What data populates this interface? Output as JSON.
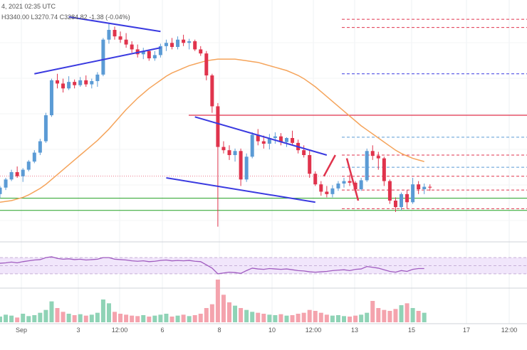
{
  "header": {
    "ohlc_text": "4, 2021 02:35 UTC",
    "ohlc_values": "H3340.00  L3270.74  C3284.82  -1.38 (-0.04%)"
  },
  "colors": {
    "up": "#5b9bd5",
    "down": "#e0334c",
    "volume_up": "#8fd3b6",
    "volume_down": "#f4a3ad",
    "trend_line": "#3a3ae0",
    "moving_average": "#f5a45b",
    "rsi": "#a05cc0",
    "rsi_band": "#f1e6fb",
    "support": "#22a022",
    "resistance": "#e0334c",
    "projection": "#e0334c"
  },
  "chart_data": {
    "type": "candlestick",
    "x_tick_labels": [
      "Sep",
      "3",
      "12:00",
      "6",
      "8",
      "10",
      "12:00",
      "13",
      "15",
      "17",
      "12:00"
    ],
    "candles": [
      {
        "o": 3330,
        "h": 3340,
        "l": 3325,
        "c": 3338
      },
      {
        "o": 3338,
        "h": 3350,
        "l": 3335,
        "c": 3348
      },
      {
        "o": 3348,
        "h": 3360,
        "l": 3346,
        "c": 3357
      },
      {
        "o": 3357,
        "h": 3364,
        "l": 3350,
        "c": 3352
      },
      {
        "o": 3352,
        "h": 3362,
        "l": 3345,
        "c": 3360
      },
      {
        "o": 3360,
        "h": 3372,
        "l": 3358,
        "c": 3370
      },
      {
        "o": 3370,
        "h": 3384,
        "l": 3368,
        "c": 3381
      },
      {
        "o": 3381,
        "h": 3398,
        "l": 3378,
        "c": 3395
      },
      {
        "o": 3395,
        "h": 3430,
        "l": 3393,
        "c": 3427
      },
      {
        "o": 3427,
        "h": 3472,
        "l": 3425,
        "c": 3470
      },
      {
        "o": 3470,
        "h": 3478,
        "l": 3460,
        "c": 3466
      },
      {
        "o": 3466,
        "h": 3472,
        "l": 3455,
        "c": 3460
      },
      {
        "o": 3460,
        "h": 3475,
        "l": 3458,
        "c": 3468
      },
      {
        "o": 3468,
        "h": 3471,
        "l": 3460,
        "c": 3464
      },
      {
        "o": 3464,
        "h": 3474,
        "l": 3462,
        "c": 3470
      },
      {
        "o": 3470,
        "h": 3476,
        "l": 3462,
        "c": 3465
      },
      {
        "o": 3465,
        "h": 3472,
        "l": 3460,
        "c": 3469
      },
      {
        "o": 3469,
        "h": 3480,
        "l": 3462,
        "c": 3477
      },
      {
        "o": 3477,
        "h": 3522,
        "l": 3475,
        "c": 3520
      },
      {
        "o": 3520,
        "h": 3540,
        "l": 3515,
        "c": 3532
      },
      {
        "o": 3532,
        "h": 3536,
        "l": 3520,
        "c": 3524
      },
      {
        "o": 3524,
        "h": 3530,
        "l": 3516,
        "c": 3520
      },
      {
        "o": 3520,
        "h": 3528,
        "l": 3510,
        "c": 3514
      },
      {
        "o": 3514,
        "h": 3518,
        "l": 3504,
        "c": 3508
      },
      {
        "o": 3508,
        "h": 3514,
        "l": 3498,
        "c": 3502
      },
      {
        "o": 3502,
        "h": 3510,
        "l": 3496,
        "c": 3506
      },
      {
        "o": 3506,
        "h": 3508,
        "l": 3494,
        "c": 3497
      },
      {
        "o": 3497,
        "h": 3506,
        "l": 3494,
        "c": 3501
      },
      {
        "o": 3501,
        "h": 3515,
        "l": 3498,
        "c": 3512
      },
      {
        "o": 3512,
        "h": 3520,
        "l": 3506,
        "c": 3516
      },
      {
        "o": 3516,
        "h": 3522,
        "l": 3508,
        "c": 3511
      },
      {
        "o": 3511,
        "h": 3524,
        "l": 3508,
        "c": 3520
      },
      {
        "o": 3520,
        "h": 3526,
        "l": 3512,
        "c": 3516
      },
      {
        "o": 3516,
        "h": 3521,
        "l": 3508,
        "c": 3518
      },
      {
        "o": 3518,
        "h": 3520,
        "l": 3506,
        "c": 3508
      },
      {
        "o": 3508,
        "h": 3512,
        "l": 3500,
        "c": 3503
      },
      {
        "o": 3503,
        "h": 3506,
        "l": 3470,
        "c": 3476
      },
      {
        "o": 3476,
        "h": 3478,
        "l": 3430,
        "c": 3438
      },
      {
        "o": 3438,
        "h": 3442,
        "l": 3290,
        "c": 3388
      },
      {
        "o": 3388,
        "h": 3395,
        "l": 3380,
        "c": 3384
      },
      {
        "o": 3384,
        "h": 3390,
        "l": 3372,
        "c": 3378
      },
      {
        "o": 3378,
        "h": 3386,
        "l": 3370,
        "c": 3383
      },
      {
        "o": 3383,
        "h": 3386,
        "l": 3340,
        "c": 3348
      },
      {
        "o": 3348,
        "h": 3380,
        "l": 3345,
        "c": 3376
      },
      {
        "o": 3376,
        "h": 3406,
        "l": 3374,
        "c": 3403
      },
      {
        "o": 3403,
        "h": 3410,
        "l": 3390,
        "c": 3395
      },
      {
        "o": 3395,
        "h": 3402,
        "l": 3386,
        "c": 3392
      },
      {
        "o": 3392,
        "h": 3404,
        "l": 3385,
        "c": 3399
      },
      {
        "o": 3399,
        "h": 3406,
        "l": 3392,
        "c": 3401
      },
      {
        "o": 3401,
        "h": 3405,
        "l": 3390,
        "c": 3394
      },
      {
        "o": 3394,
        "h": 3400,
        "l": 3388,
        "c": 3399
      },
      {
        "o": 3399,
        "h": 3408,
        "l": 3390,
        "c": 3393
      },
      {
        "o": 3393,
        "h": 3397,
        "l": 3380,
        "c": 3384
      },
      {
        "o": 3384,
        "h": 3390,
        "l": 3375,
        "c": 3378
      },
      {
        "o": 3378,
        "h": 3384,
        "l": 3350,
        "c": 3355
      },
      {
        "o": 3355,
        "h": 3358,
        "l": 3340,
        "c": 3342
      },
      {
        "o": 3342,
        "h": 3346,
        "l": 3328,
        "c": 3333
      },
      {
        "o": 3333,
        "h": 3340,
        "l": 3326,
        "c": 3330
      },
      {
        "o": 3330,
        "h": 3341,
        "l": 3326,
        "c": 3337
      },
      {
        "o": 3337,
        "h": 3346,
        "l": 3334,
        "c": 3343
      },
      {
        "o": 3343,
        "h": 3350,
        "l": 3338,
        "c": 3346
      },
      {
        "o": 3346,
        "h": 3354,
        "l": 3340,
        "c": 3344
      },
      {
        "o": 3344,
        "h": 3346,
        "l": 3332,
        "c": 3336
      },
      {
        "o": 3336,
        "h": 3350,
        "l": 3334,
        "c": 3347
      },
      {
        "o": 3347,
        "h": 3386,
        "l": 3345,
        "c": 3383
      },
      {
        "o": 3383,
        "h": 3390,
        "l": 3372,
        "c": 3377
      },
      {
        "o": 3377,
        "h": 3382,
        "l": 3360,
        "c": 3374
      },
      {
        "o": 3374,
        "h": 3376,
        "l": 3340,
        "c": 3346
      },
      {
        "o": 3346,
        "h": 3348,
        "l": 3318,
        "c": 3322
      },
      {
        "o": 3322,
        "h": 3326,
        "l": 3308,
        "c": 3314
      },
      {
        "o": 3314,
        "h": 3332,
        "l": 3310,
        "c": 3330
      },
      {
        "o": 3330,
        "h": 3335,
        "l": 3312,
        "c": 3320
      },
      {
        "o": 3320,
        "h": 3350,
        "l": 3318,
        "c": 3342
      },
      {
        "o": 3342,
        "h": 3346,
        "l": 3330,
        "c": 3336
      },
      {
        "o": 3336,
        "h": 3343,
        "l": 3330,
        "c": 3339
      },
      {
        "o": 3339,
        "h": 3342,
        "l": 3334,
        "c": 3338
      }
    ],
    "moving_average": [
      3320,
      3321,
      3322,
      3324,
      3326,
      3329,
      3333,
      3337,
      3342,
      3348,
      3354,
      3360,
      3366,
      3372,
      3378,
      3384,
      3390,
      3396,
      3403,
      3410,
      3418,
      3426,
      3434,
      3441,
      3448,
      3454,
      3460,
      3465,
      3470,
      3475,
      3479,
      3482,
      3485,
      3488,
      3490,
      3492,
      3494,
      3495,
      3496,
      3496,
      3496,
      3496,
      3495,
      3494,
      3493,
      3492,
      3490,
      3488,
      3486,
      3484,
      3482,
      3479,
      3476,
      3472,
      3467,
      3462,
      3456,
      3450,
      3444,
      3438,
      3432,
      3426,
      3420,
      3414,
      3409,
      3404,
      3399,
      3394,
      3389,
      3384,
      3380,
      3377,
      3374,
      3372,
      3370
    ],
    "volume": [
      12,
      16,
      14,
      10,
      18,
      13,
      15,
      20,
      26,
      44,
      30,
      22,
      18,
      15,
      17,
      14,
      16,
      20,
      48,
      40,
      22,
      18,
      16,
      14,
      13,
      15,
      12,
      14,
      16,
      18,
      12,
      14,
      16,
      13,
      15,
      18,
      30,
      38,
      90,
      58,
      42,
      35,
      30,
      26,
      22,
      20,
      18,
      16,
      15,
      17,
      14,
      15,
      18,
      20,
      26,
      24,
      20,
      16,
      14,
      15,
      13,
      12,
      14,
      16,
      20,
      45,
      30,
      26,
      24,
      28,
      36,
      40,
      30,
      24,
      20
    ],
    "rsi": [
      56,
      57,
      59,
      57,
      60,
      62,
      64,
      65,
      70,
      72,
      68,
      66,
      67,
      65,
      66,
      64,
      65,
      66,
      70,
      70,
      66,
      65,
      64,
      62,
      61,
      62,
      60,
      61,
      63,
      64,
      62,
      63,
      62,
      63,
      61,
      60,
      52,
      44,
      30,
      32,
      34,
      33,
      31,
      38,
      44,
      42,
      41,
      43,
      42,
      41,
      42,
      40,
      38,
      37,
      35,
      34,
      35,
      36,
      38,
      39,
      40,
      38,
      41,
      42,
      48,
      46,
      44,
      40,
      36,
      34,
      38,
      36,
      41,
      43,
      43
    ],
    "ylim": [
      3280,
      3560
    ],
    "trend_lines": [
      {
        "x1": 12,
        "y1": 3548,
        "x2": 28,
        "y2": 3530
      },
      {
        "x1": 6,
        "y1": 3478,
        "x2": 28,
        "y2": 3510
      },
      {
        "x1": 34,
        "y1": 3425,
        "x2": 57,
        "y2": 3378
      },
      {
        "x1": 29,
        "y1": 3350,
        "x2": 55,
        "y2": 3320
      }
    ],
    "support_levels": [
      3325,
      3310
    ],
    "resistance_level": 3427,
    "projection": [
      {
        "x1": 55,
        "y1": 3352,
        "x2": 57,
        "y2": 3378
      },
      {
        "x1": 59,
        "y1": 3374,
        "x2": 61,
        "y2": 3322
      }
    ]
  }
}
